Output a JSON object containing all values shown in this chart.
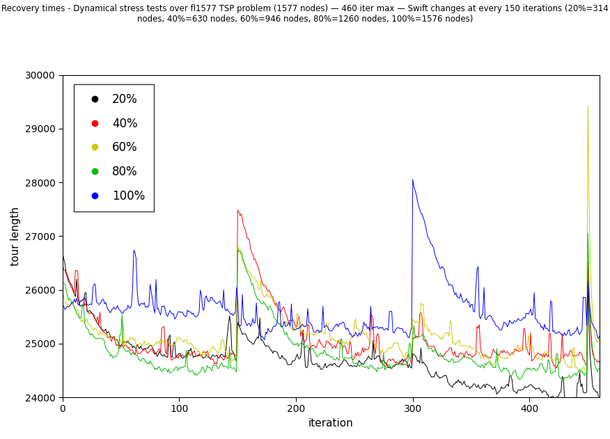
{
  "title_line1": "Recovery times - Dynamical stress tests over fl1577 TSP problem (1577 nodes) — 460 iter max — Swift changes at every 150 iterations (20%=314",
  "title_line2": "nodes, 40%=630 nodes, 60%=946 nodes, 80%=1260 nodes, 100%=1576 nodes)",
  "xlabel": "iteration",
  "ylabel": "tour length",
  "xlim": [
    0,
    460
  ],
  "ylim": [
    24000,
    30000
  ],
  "yticks": [
    24000,
    25000,
    26000,
    27000,
    28000,
    29000,
    30000
  ],
  "xticks": [
    0,
    100,
    200,
    300,
    400
  ],
  "colors": {
    "20%": "#000000",
    "40%": "#ff0000",
    "60%": "#cccc00",
    "80%": "#00bb00",
    "100%": "#0000ff"
  },
  "legend_labels": [
    "20%",
    "40%",
    "60%",
    "80%",
    "100%"
  ],
  "n_iter": 461,
  "background": "#ffffff",
  "change_points": [
    150,
    300,
    450
  ]
}
